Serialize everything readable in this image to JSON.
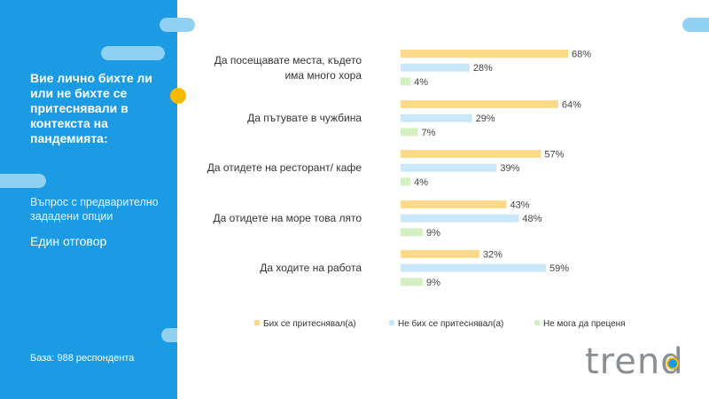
{
  "sidebar": {
    "question": "Вие лично бихте ли или не бихте се притеснявали в контекста на пандемията:",
    "question_type": "Въпрос с предварително зададени опции",
    "answer_type": "Един отговор",
    "base": "База: 988 респондента"
  },
  "logo": {
    "text": "trend"
  },
  "colors": {
    "sidebar": "#1a9be3",
    "series": [
      "#fdd98a",
      "#c9e7f8",
      "#d4efc2"
    ],
    "accent_dot": "#f9b800"
  },
  "chart_data": {
    "type": "bar",
    "orientation": "horizontal",
    "categories": [
      [
        "Да посещавате места, където",
        "има много хора"
      ],
      [
        "Да пътувате в чужбина"
      ],
      [
        "Да отидете на ресторант/ кафе"
      ],
      [
        "Да отидете на море това лято"
      ],
      [
        "Да ходите на работа"
      ]
    ],
    "series": [
      {
        "name": "Бих се притеснявал(а)",
        "values": [
          68,
          64,
          57,
          43,
          32
        ]
      },
      {
        "name": "Не бих се притеснявал(а)",
        "values": [
          28,
          29,
          39,
          48,
          59
        ]
      },
      {
        "name": "Не мога да преценя",
        "values": [
          4,
          7,
          4,
          9,
          9
        ]
      }
    ],
    "value_suffix": "%",
    "xlim": [
      0,
      100
    ],
    "legend": "bottom",
    "grid": false
  }
}
